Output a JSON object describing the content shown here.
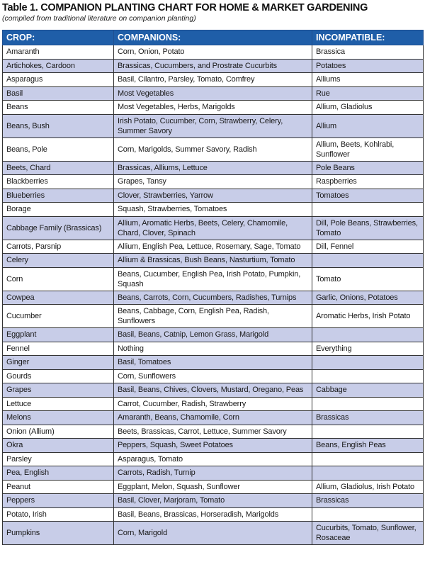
{
  "title": "Table 1. COMPANION PLANTING CHART FOR HOME & MARKET GARDENING",
  "subtitle": "(compiled from traditional literature on companion planting)",
  "colors": {
    "header": "#1f5ea8",
    "shaded_row": "#c8cde8"
  },
  "headers": [
    "CROP:",
    "COMPANIONS:",
    "INCOMPATIBLE:"
  ],
  "rows": [
    [
      "Amaranth",
      "Corn, Onion, Potato",
      "Brassica"
    ],
    [
      "Artichokes, Cardoon",
      "Brassicas, Cucumbers, and Prostrate Cucurbits",
      "Potatoes"
    ],
    [
      "Asparagus",
      "Basil, Cilantro, Parsley, Tomato, Comfrey",
      "Alliums"
    ],
    [
      "Basil",
      "Most Vegetables",
      "Rue"
    ],
    [
      "Beans",
      "Most Vegetables, Herbs, Marigolds",
      "Allium, Gladiolus"
    ],
    [
      "Beans, Bush",
      "Irish Potato, Cucumber, Corn, Strawberry, Celery, Summer Savory",
      "Allium"
    ],
    [
      "Beans, Pole",
      "Corn, Marigolds, Summer Savory, Radish",
      "Allium, Beets, Kohlrabi, Sunflower"
    ],
    [
      "Beets, Chard",
      "Brassicas, Alliums, Lettuce",
      "Pole Beans"
    ],
    [
      "Blackberries",
      "Grapes, Tansy",
      "Raspberries"
    ],
    [
      "Blueberries",
      "Clover, Strawberries, Yarrow",
      "Tomatoes"
    ],
    [
      "Borage",
      "Squash, Strawberries, Tomatoes",
      ""
    ],
    [
      "Cabbage Family (Brassicas)",
      "Allium, Aromatic Herbs, Beets, Celery, Chamomile, Chard, Clover, Spinach",
      "Dill, Pole Beans, Strawberries, Tomato"
    ],
    [
      "Carrots, Parsnip",
      "Allium, English Pea, Lettuce, Rosemary, Sage, Tomato",
      "Dill, Fennel"
    ],
    [
      "Celery",
      "Allium & Brassicas, Bush Beans, Nasturtium, Tomato",
      ""
    ],
    [
      "Corn",
      "Beans, Cucumber, English Pea, Irish Potato, Pumpkin, Squash",
      "Tomato"
    ],
    [
      "Cowpea",
      "Beans, Carrots, Corn, Cucumbers, Radishes, Turnips",
      "Garlic, Onions, Potatoes"
    ],
    [
      "Cucumber",
      "Beans, Cabbage, Corn, English Pea, Radish, Sunflowers",
      "Aromatic Herbs, Irish Potato"
    ],
    [
      "Eggplant",
      "Basil, Beans, Catnip, Lemon Grass, Marigold",
      ""
    ],
    [
      "Fennel",
      "Nothing",
      "Everything"
    ],
    [
      "Ginger",
      "Basil, Tomatoes",
      ""
    ],
    [
      "Gourds",
      "Corn, Sunflowers",
      ""
    ],
    [
      "Grapes",
      "Basil, Beans, Chives, Clovers, Mustard, Oregano, Peas",
      "Cabbage"
    ],
    [
      "Lettuce",
      "Carrot, Cucumber, Radish, Strawberry",
      ""
    ],
    [
      "Melons",
      "Amaranth, Beans, Chamomile, Corn",
      "Brassicas"
    ],
    [
      "Onion (Allium)",
      "Beets, Brassicas, Carrot, Lettuce, Summer Savory",
      ""
    ],
    [
      "Okra",
      "Peppers, Squash, Sweet Potatoes",
      "Beans, English Peas"
    ],
    [
      "Parsley",
      "Asparagus, Tomato",
      ""
    ],
    [
      "Pea, English",
      "Carrots, Radish, Turnip",
      ""
    ],
    [
      "Peanut",
      "Eggplant, Melon, Squash, Sunflower",
      "Allium, Gladiolus, Irish Potato"
    ],
    [
      "Peppers",
      "Basil, Clover, Marjoram, Tomato",
      "Brassicas"
    ],
    [
      "Potato, Irish",
      "Basil, Beans, Brassicas, Horseradish, Marigolds",
      ""
    ],
    [
      "Pumpkins",
      "Corn, Marigold",
      "Cucurbits, Tomato, Sunflower, Rosaceae"
    ]
  ]
}
